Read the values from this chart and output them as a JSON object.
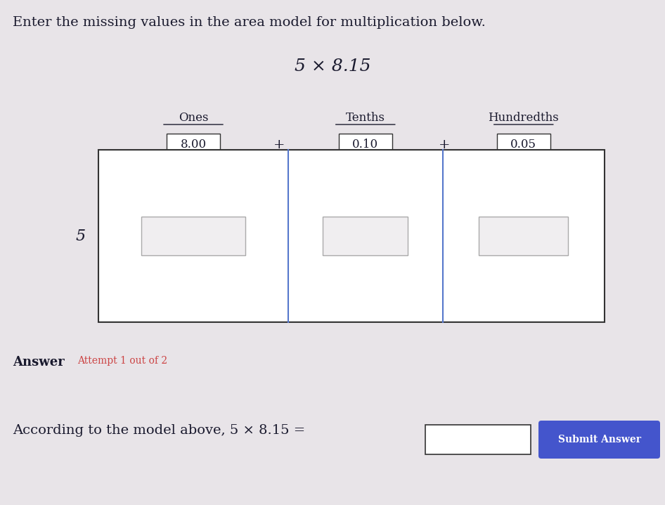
{
  "title_instruction": "Enter the missing values in the area model for multiplication below.",
  "problem_title": "5 × 8.15",
  "background_color": "#e8e4e8",
  "col_headers": [
    "Ones",
    "Tenths",
    "Hundredths"
  ],
  "col_values": [
    "8.00",
    "0.10",
    "0.05"
  ],
  "row_label": "5",
  "plus_signs": [
    "+",
    "+"
  ],
  "answer_label": "According to the model above, 5 × 8.15 =",
  "answer_label2": "Answer",
  "attempt_text": "Attempt 1 out of 2",
  "submit_btn_text": "Submit Answer",
  "submit_btn_color": "#4455cc",
  "main_box_color": "#ffffff",
  "inner_box_color": "#f0eef0",
  "header_box_color": "#ffffff",
  "border_color": "#333333",
  "blue_divider_color": "#5577cc",
  "text_color": "#1a1a2e",
  "answer_box_color": "#ffffff"
}
